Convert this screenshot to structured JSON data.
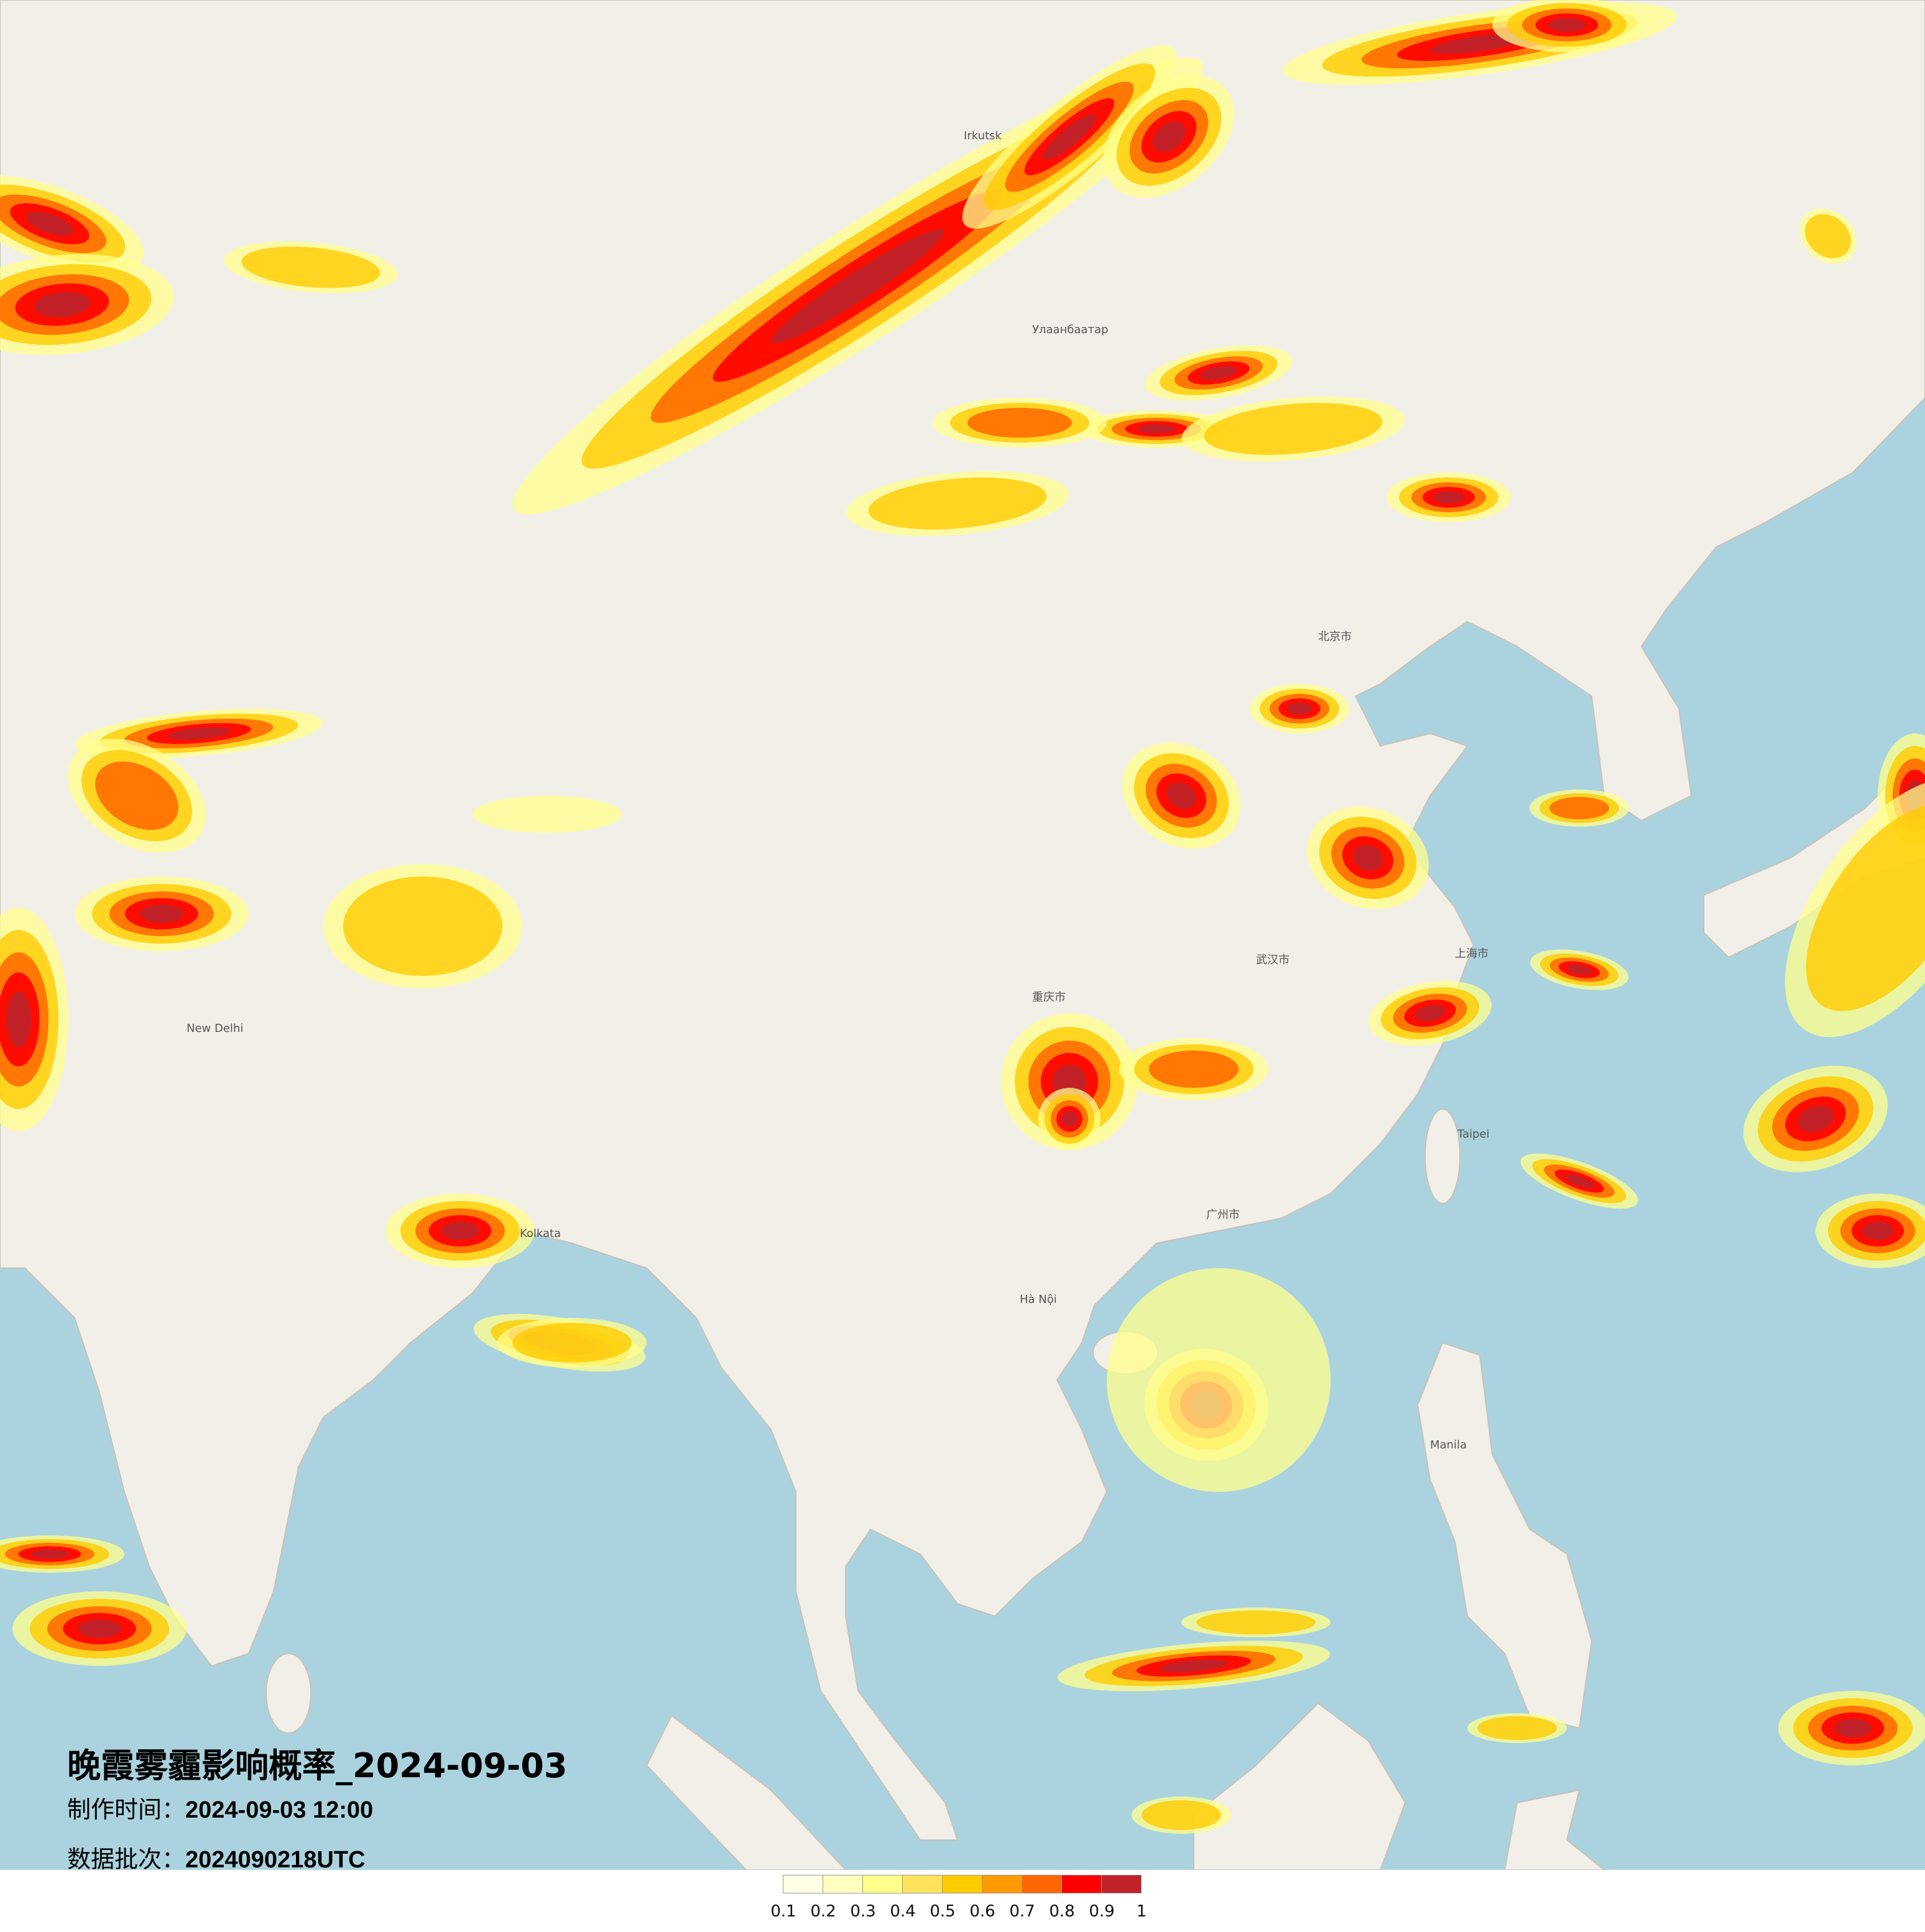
{
  "map": {
    "title": "晚霞雾霾影响概率_2024-09-03",
    "production_time_label": "制作时间：",
    "production_time": "2024-09-03 12:00",
    "data_batch_label": "数据批次：",
    "data_batch": "2024090218UTC",
    "base_colors": {
      "land": "#f2efe9",
      "ocean": "#aad3df"
    },
    "city_labels": [
      "Улаанбаатар",
      "北京市",
      "上海市",
      "武汉市",
      "广州市",
      "重庆市",
      "Hà Nội",
      "Kolkata",
      "New Delhi",
      "Manila",
      "Taipei",
      "Irkutsk"
    ]
  },
  "legend": {
    "colors": [
      "#ffffe6",
      "#ffffbf",
      "#ffff8c",
      "#ffe35c",
      "#ffcc00",
      "#ff9a00",
      "#ff6600",
      "#ff0000",
      "#c0232a"
    ],
    "ticks": [
      "0.1",
      "0.2",
      "0.3",
      "0.4",
      "0.5",
      "0.6",
      "0.7",
      "0.8",
      "0.9",
      "1"
    ]
  }
}
